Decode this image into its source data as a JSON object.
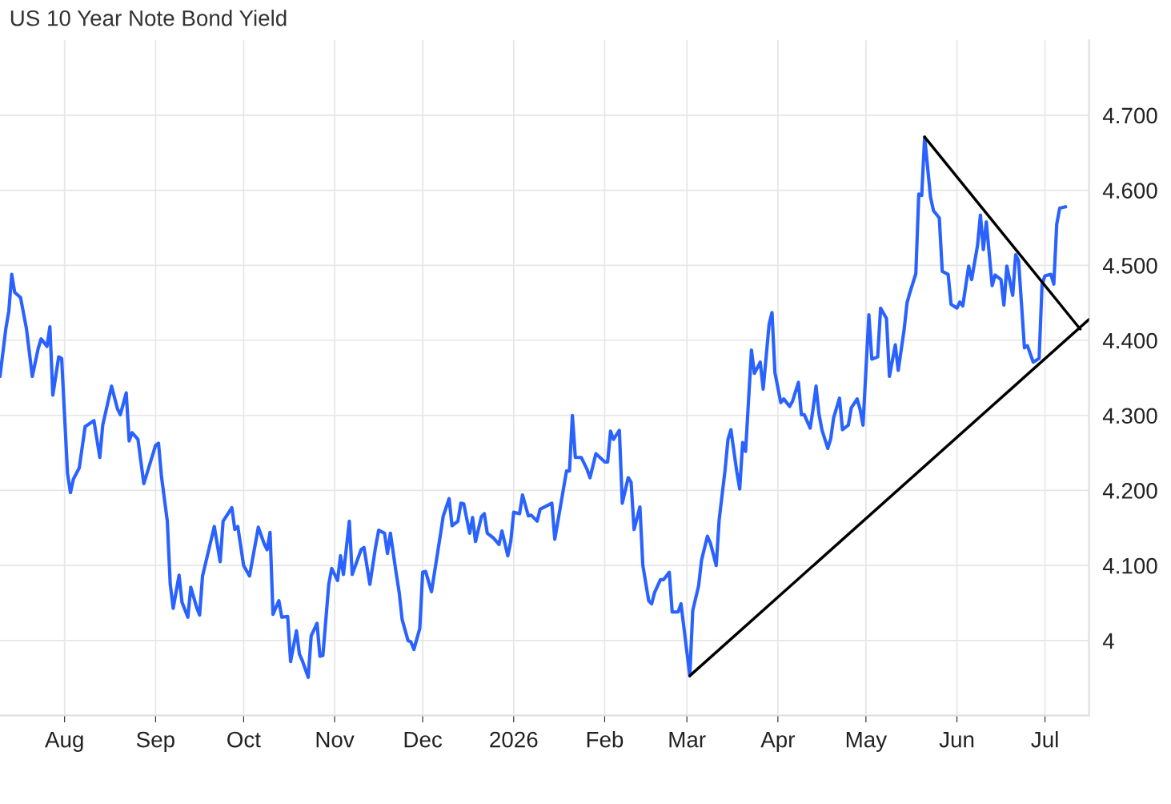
{
  "chart_data": {
    "type": "line",
    "title": "US 10 Year Note Bond Yield",
    "xlim": [
      "2025-07-10",
      "2026-07-16"
    ],
    "xticks": [
      {
        "value": "2025-08-01",
        "label": "Aug"
      },
      {
        "value": "2025-09-01",
        "label": "Sep"
      },
      {
        "value": "2025-10-01",
        "label": "Oct"
      },
      {
        "value": "2025-11-01",
        "label": "Nov"
      },
      {
        "value": "2025-12-01",
        "label": "Dec"
      },
      {
        "value": "2026-01-01",
        "label": "2026"
      },
      {
        "value": "2026-02-01",
        "label": "Feb"
      },
      {
        "value": "2026-03-01",
        "label": "Mar"
      },
      {
        "value": "2026-04-01",
        "label": "Apr"
      },
      {
        "value": "2026-05-01",
        "label": "May"
      },
      {
        "value": "2026-06-01",
        "label": "Jun"
      },
      {
        "value": "2026-07-01",
        "label": "Jul"
      }
    ],
    "ylim": [
      3.9,
      4.8
    ],
    "yticks": [
      {
        "value": 4.0,
        "label": "4"
      },
      {
        "value": 4.1,
        "label": "4.100"
      },
      {
        "value": 4.2,
        "label": "4.200"
      },
      {
        "value": 4.3,
        "label": "4.300"
      },
      {
        "value": 4.4,
        "label": "4.400"
      },
      {
        "value": 4.5,
        "label": "4.500"
      },
      {
        "value": 4.6,
        "label": "4.600"
      },
      {
        "value": 4.7,
        "label": "4.700"
      }
    ],
    "grid": true,
    "marker": "none",
    "line_style": "solid",
    "series": [
      {
        "color": "#2962ff",
        "x": [
          "2025-07-10",
          "2025-07-12",
          "2025-07-13",
          "2025-07-14",
          "2025-07-15",
          "2025-07-17",
          "2025-07-19",
          "2025-07-21",
          "2025-07-23",
          "2025-07-24",
          "2025-07-26",
          "2025-07-27",
          "2025-07-28",
          "2025-07-30",
          "2025-07-31",
          "2025-08-02",
          "2025-08-03",
          "2025-08-04",
          "2025-08-06",
          "2025-08-08",
          "2025-08-11",
          "2025-08-13",
          "2025-08-14",
          "2025-08-17",
          "2025-08-19",
          "2025-08-20",
          "2025-08-22",
          "2025-08-23",
          "2025-08-24",
          "2025-08-26",
          "2025-08-28",
          "2025-09-01",
          "2025-09-02",
          "2025-09-03",
          "2025-09-05",
          "2025-09-06",
          "2025-09-07",
          "2025-09-09",
          "2025-09-10",
          "2025-09-12",
          "2025-09-13",
          "2025-09-15",
          "2025-09-16",
          "2025-09-17",
          "2025-09-21",
          "2025-09-23",
          "2025-09-24",
          "2025-09-27",
          "2025-09-28",
          "2025-09-29",
          "2025-10-01",
          "2025-10-03",
          "2025-10-06",
          "2025-10-08",
          "2025-10-09",
          "2025-10-10",
          "2025-10-11",
          "2025-10-13",
          "2025-10-14",
          "2025-10-16",
          "2025-10-17",
          "2025-10-19",
          "2025-10-20",
          "2025-10-21",
          "2025-10-23",
          "2025-10-24",
          "2025-10-26",
          "2025-10-27",
          "2025-10-28",
          "2025-10-30",
          "2025-10-31",
          "2025-11-02",
          "2025-11-03",
          "2025-11-04",
          "2025-11-06",
          "2025-11-07",
          "2025-11-10",
          "2025-11-11",
          "2025-11-13",
          "2025-11-15",
          "2025-11-16",
          "2025-11-18",
          "2025-11-19",
          "2025-11-20",
          "2025-11-22",
          "2025-11-23",
          "2025-11-24",
          "2025-11-26",
          "2025-11-27",
          "2025-11-28",
          "2025-11-30",
          "2025-12-01",
          "2025-12-02",
          "2025-12-04",
          "2025-12-07",
          "2025-12-08",
          "2025-12-10",
          "2025-12-11",
          "2025-12-13",
          "2025-12-14",
          "2025-12-15",
          "2025-12-17",
          "2025-12-18",
          "2025-12-19",
          "2025-12-21",
          "2025-12-22",
          "2025-12-23",
          "2025-12-25",
          "2025-12-27",
          "2025-12-28",
          "2025-12-30",
          "2025-12-31",
          "2026-01-01",
          "2026-01-03",
          "2026-01-04",
          "2026-01-06",
          "2026-01-07",
          "2026-01-09",
          "2026-01-10",
          "2026-01-12",
          "2026-01-14",
          "2026-01-15",
          "2026-01-19",
          "2026-01-20",
          "2026-01-21",
          "2026-01-22",
          "2026-01-24",
          "2026-01-26",
          "2026-01-27",
          "2026-01-29",
          "2026-02-01",
          "2026-02-02",
          "2026-02-03",
          "2026-02-04",
          "2026-02-06",
          "2026-02-07",
          "2026-02-09",
          "2026-02-10",
          "2026-02-11",
          "2026-02-13",
          "2026-02-14",
          "2026-02-16",
          "2026-02-17",
          "2026-02-18",
          "2026-02-20",
          "2026-02-21",
          "2026-02-23",
          "2026-02-24",
          "2026-02-26",
          "2026-02-27",
          "2026-03-02",
          "2026-03-03",
          "2026-03-05",
          "2026-03-06",
          "2026-03-08",
          "2026-03-09",
          "2026-03-11",
          "2026-03-12",
          "2026-03-14",
          "2026-03-15",
          "2026-03-16",
          "2026-03-18",
          "2026-03-19",
          "2026-03-20",
          "2026-03-21",
          "2026-03-23",
          "2026-03-24",
          "2026-03-26",
          "2026-03-27",
          "2026-03-29",
          "2026-03-30",
          "2026-03-31",
          "2026-04-02",
          "2026-04-03",
          "2026-04-05",
          "2026-04-06",
          "2026-04-08",
          "2026-04-09",
          "2026-04-10",
          "2026-04-12",
          "2026-04-13",
          "2026-04-14",
          "2026-04-15",
          "2026-04-16",
          "2026-04-18",
          "2026-04-19",
          "2026-04-20",
          "2026-04-22",
          "2026-04-23",
          "2026-04-25",
          "2026-04-26",
          "2026-04-28",
          "2026-04-29",
          "2026-04-30",
          "2026-05-02",
          "2026-05-03",
          "2026-05-05",
          "2026-05-06",
          "2026-05-08",
          "2026-05-09",
          "2026-05-11",
          "2026-05-12",
          "2026-05-14",
          "2026-05-15",
          "2026-05-16",
          "2026-05-18",
          "2026-05-19",
          "2026-05-20",
          "2026-05-21",
          "2026-05-23",
          "2026-05-24",
          "2026-05-26",
          "2026-05-27",
          "2026-05-29",
          "2026-05-30",
          "2026-06-01",
          "2026-06-02",
          "2026-06-03",
          "2026-06-05",
          "2026-06-06",
          "2026-06-08",
          "2026-06-09",
          "2026-06-10",
          "2026-06-11",
          "2026-06-13",
          "2026-06-14",
          "2026-06-16",
          "2026-06-17",
          "2026-06-18",
          "2026-06-20",
          "2026-06-21",
          "2026-06-22",
          "2026-06-24",
          "2026-06-25",
          "2026-06-27",
          "2026-06-29",
          "2026-06-30",
          "2026-07-01",
          "2026-07-03",
          "2026-07-04",
          "2026-07-05",
          "2026-07-06",
          "2026-07-08"
        ],
        "values": [
          4.352,
          4.416,
          4.439,
          4.488,
          4.464,
          4.457,
          4.416,
          4.352,
          4.389,
          4.402,
          4.392,
          4.418,
          4.327,
          4.378,
          4.376,
          4.223,
          4.197,
          4.215,
          4.23,
          4.285,
          4.293,
          4.244,
          4.287,
          4.339,
          4.309,
          4.301,
          4.33,
          4.266,
          4.277,
          4.268,
          4.209,
          4.26,
          4.263,
          4.219,
          4.159,
          4.075,
          4.043,
          4.087,
          4.051,
          4.031,
          4.071,
          4.044,
          4.034,
          4.086,
          4.152,
          4.105,
          4.159,
          4.177,
          4.148,
          4.152,
          4.1,
          4.086,
          4.151,
          4.129,
          4.121,
          4.144,
          4.035,
          4.053,
          4.031,
          4.032,
          3.972,
          4.013,
          3.982,
          3.973,
          3.951,
          4.006,
          4.023,
          3.979,
          3.98,
          4.075,
          4.096,
          4.08,
          4.113,
          4.088,
          4.159,
          4.088,
          4.121,
          4.124,
          4.075,
          4.126,
          4.147,
          4.143,
          4.116,
          4.143,
          4.089,
          4.064,
          4.028,
          4.0,
          3.998,
          3.988,
          4.016,
          4.091,
          4.092,
          4.065,
          4.14,
          4.166,
          4.189,
          4.153,
          4.159,
          4.183,
          4.182,
          4.143,
          4.164,
          4.132,
          4.165,
          4.169,
          4.143,
          4.137,
          4.128,
          4.146,
          4.113,
          4.132,
          4.171,
          4.169,
          4.194,
          4.166,
          4.167,
          4.159,
          4.175,
          4.179,
          4.183,
          4.135,
          4.226,
          4.226,
          4.3,
          4.244,
          4.244,
          4.228,
          4.217,
          4.249,
          4.238,
          4.238,
          4.279,
          4.268,
          4.28,
          4.183,
          4.217,
          4.211,
          4.148,
          4.178,
          4.1,
          4.053,
          4.049,
          4.064,
          4.081,
          4.081,
          4.091,
          4.038,
          4.038,
          4.049,
          3.953,
          4.04,
          4.073,
          4.107,
          4.139,
          4.13,
          4.1,
          4.161,
          4.227,
          4.268,
          4.281,
          4.225,
          4.202,
          4.264,
          4.252,
          4.387,
          4.356,
          4.371,
          4.335,
          4.421,
          4.437,
          4.357,
          4.317,
          4.322,
          4.312,
          4.319,
          4.344,
          4.301,
          4.301,
          4.283,
          4.309,
          4.339,
          4.302,
          4.281,
          4.256,
          4.269,
          4.297,
          4.323,
          4.281,
          4.287,
          4.31,
          4.322,
          4.308,
          4.287,
          4.434,
          4.375,
          4.378,
          4.443,
          4.429,
          4.352,
          4.394,
          4.36,
          4.414,
          4.45,
          4.464,
          4.489,
          4.595,
          4.593,
          4.671,
          4.591,
          4.573,
          4.563,
          4.492,
          4.488,
          4.448,
          4.443,
          4.451,
          4.446,
          4.499,
          4.481,
          4.526,
          4.567,
          4.521,
          4.558,
          4.473,
          4.487,
          4.481,
          4.447,
          4.499,
          4.46,
          4.514,
          4.506,
          4.39,
          4.393,
          4.371,
          4.376,
          4.475,
          4.486,
          4.488,
          4.475,
          4.555,
          4.576,
          4.578
        ]
      },
      {
        "color": "#000000",
        "x": [
          "2026-05-21",
          "2026-07-13"
        ],
        "values": [
          4.671,
          4.415
        ]
      },
      {
        "color": "#000000",
        "x": [
          "2026-03-02",
          "2026-07-16"
        ],
        "values": [
          3.953,
          4.428
        ]
      }
    ]
  }
}
